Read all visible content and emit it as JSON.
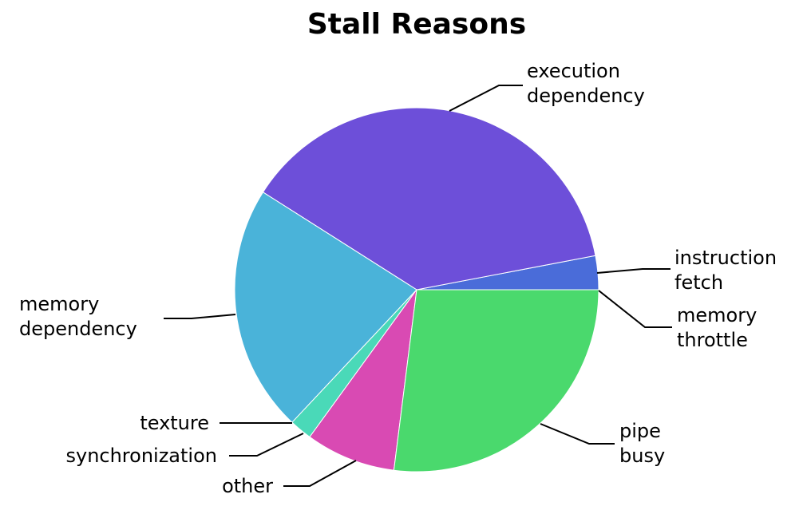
{
  "chart_data": {
    "type": "pie",
    "title": "Stall Reasons",
    "legend": "none",
    "slices": [
      {
        "label": [
          "instruction",
          "fetch"
        ],
        "value": 3.0,
        "color": "#4a6cd9"
      },
      {
        "label": [
          "execution",
          "dependency"
        ],
        "value": 38.0,
        "color": "#6d4fd9"
      },
      {
        "label": [
          "memory",
          "dependency"
        ],
        "value": 22.0,
        "color": "#4ab3d9"
      },
      {
        "label": [
          "texture"
        ],
        "value": 0.0,
        "color": "#4ad9c0"
      },
      {
        "label": [
          "synchronization"
        ],
        "value": 2.0,
        "color": "#4ad9b8"
      },
      {
        "label": [
          "other"
        ],
        "value": 8.0,
        "color": "#d94ab3"
      },
      {
        "label": [
          "pipe",
          "busy"
        ],
        "value": 27.0,
        "color": "#4ad96d"
      },
      {
        "label": [
          "memory",
          "throttle"
        ],
        "value": 0.0,
        "color": "#4ad96d"
      }
    ]
  }
}
